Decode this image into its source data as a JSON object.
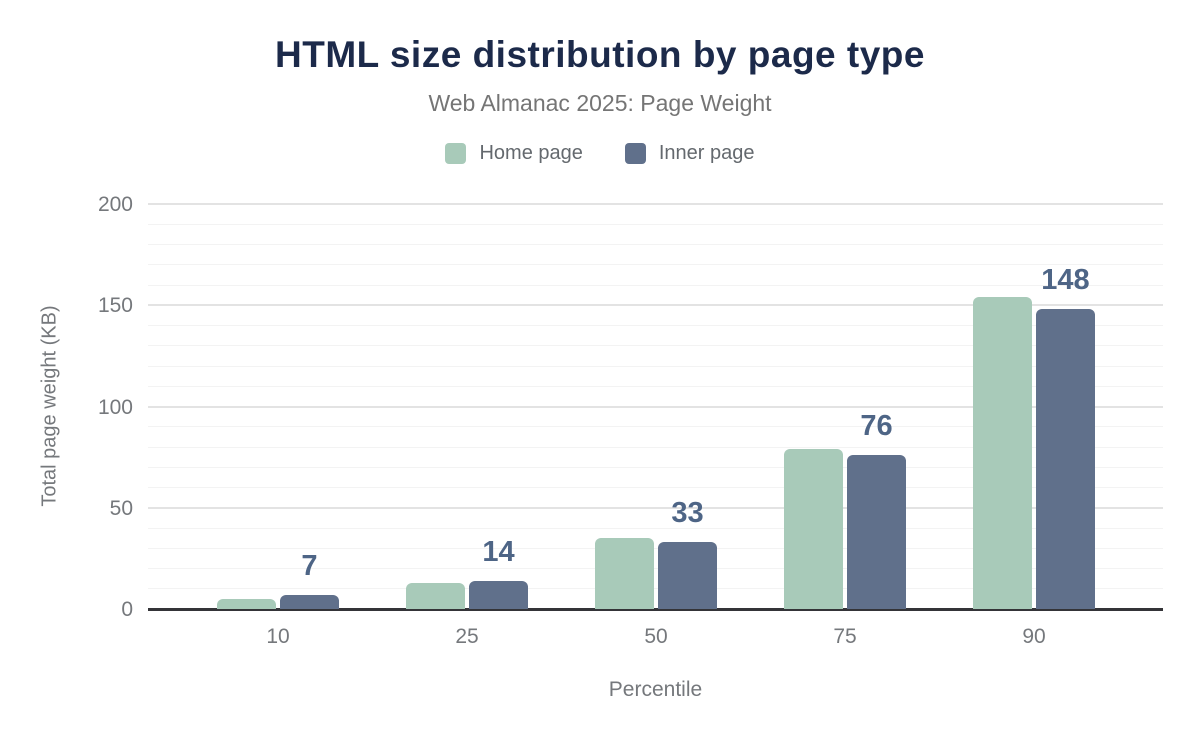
{
  "header": {
    "title": "HTML size distribution by page type",
    "subtitle": "Web Almanac 2025: Page Weight"
  },
  "chart_data": {
    "type": "bar",
    "title": "HTML size distribution by page type",
    "subtitle": "Web Almanac 2025: Page Weight",
    "categories": [
      "10",
      "25",
      "50",
      "75",
      "90"
    ],
    "series": [
      {
        "name": "Home page",
        "color": "#a8cab9",
        "values": [
          5,
          13,
          35,
          79,
          154
        ]
      },
      {
        "name": "Inner page",
        "color": "#60708b",
        "values": [
          7,
          14,
          33,
          76,
          148
        ]
      }
    ],
    "value_labels": {
      "series": "Inner page",
      "values": [
        "7",
        "14",
        "33",
        "76",
        "148"
      ]
    },
    "xlabel": "Percentile",
    "ylabel": "Total page weight (KB)",
    "ylim": [
      0,
      200
    ],
    "yticks": [
      0,
      50,
      100,
      150,
      200
    ],
    "minor_grid_step": 10,
    "grid": "horizontal",
    "legend_position": "top"
  },
  "colors": {
    "title": "#1c2a4a",
    "subtitle": "#757575",
    "legend_text": "#64696e",
    "axis_text": "#75787c",
    "value_label": "#4e6586",
    "axis_line": "#343438",
    "grid_major": "#e3e3e3",
    "grid_minor": "#f3f3f3",
    "background": "#ffffff"
  }
}
